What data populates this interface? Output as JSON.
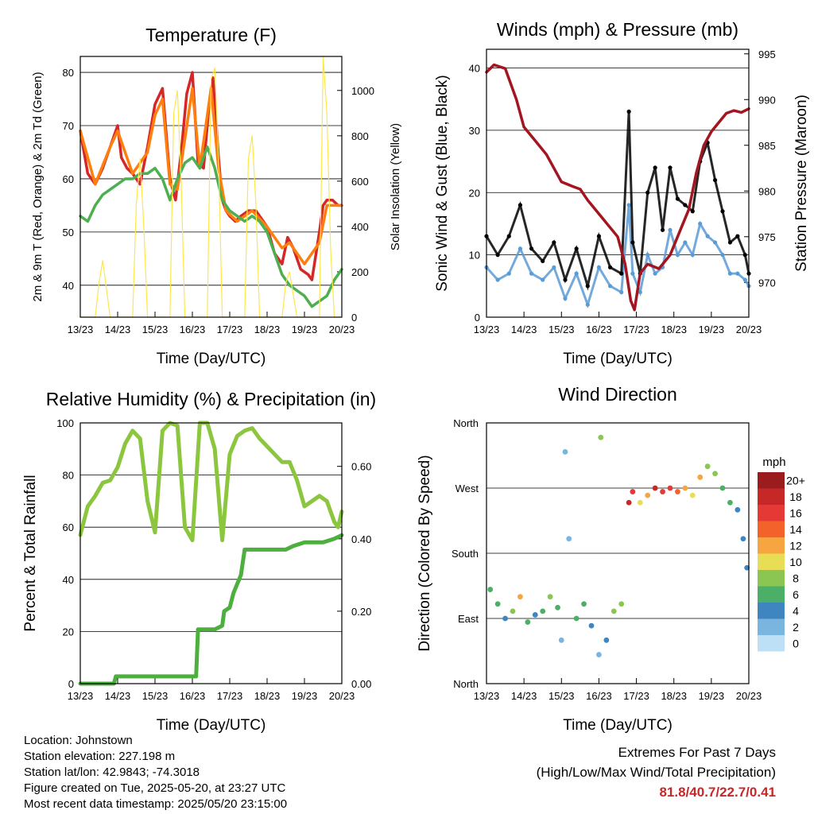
{
  "chart_data": [
    {
      "type": "line",
      "title": "Temperature (F)",
      "xlabel": "Time (Day/UTC)",
      "ylabel": "2m & 9m T (Red, Orange) & 2m Td (Green)",
      "y2label": "Solar Insolation (Yellow)",
      "x_ticks": [
        "13/23",
        "14/23",
        "15/23",
        "16/23",
        "17/23",
        "18/23",
        "19/23",
        "20/23"
      ],
      "ylim": [
        34,
        83
      ],
      "y_ticks": [
        40,
        50,
        60,
        70,
        80
      ],
      "y2lim": [
        0,
        1150
      ],
      "y2_ticks": [
        0,
        200,
        400,
        600,
        800,
        1000
      ],
      "grid": "horizontal",
      "series": [
        {
          "color": "#d62728",
          "x": [
            0,
            0.2,
            0.4,
            0.6,
            0.8,
            1.0,
            1.1,
            1.25,
            1.4,
            1.6,
            1.8,
            2.0,
            2.2,
            2.4,
            2.55,
            2.7,
            2.85,
            3.0,
            3.15,
            3.3,
            3.45,
            3.55,
            3.7,
            3.8,
            3.9,
            4.0,
            4.15,
            4.3,
            4.5,
            4.7,
            5.0,
            5.2,
            5.4,
            5.55,
            5.7,
            5.9,
            6.1,
            6.2,
            6.4,
            6.5,
            6.6,
            6.75,
            6.9,
            7.0
          ],
          "y": [
            69,
            61,
            59,
            62,
            66,
            70,
            64,
            62,
            61,
            59,
            66,
            74,
            77,
            60,
            56,
            65,
            76,
            80,
            63,
            62,
            74,
            79,
            64,
            56,
            54,
            53,
            52,
            53,
            54,
            54,
            51,
            46,
            44,
            49,
            47,
            43,
            42,
            41,
            50,
            55,
            56,
            56,
            55,
            55
          ]
        },
        {
          "color": "#ff7f0e",
          "x": [
            0,
            0.4,
            0.8,
            1.0,
            1.4,
            1.8,
            2.0,
            2.2,
            2.4,
            2.6,
            3.0,
            3.2,
            3.5,
            3.7,
            3.9,
            4.2,
            4.6,
            5.0,
            5.4,
            5.6,
            6.0,
            6.4,
            6.6,
            7.0
          ],
          "y": [
            69,
            59,
            66,
            69,
            61,
            65,
            72,
            75,
            59,
            58,
            77,
            62,
            77,
            62,
            54,
            52,
            54,
            51,
            47,
            48,
            44,
            48,
            55,
            55
          ]
        },
        {
          "color": "#4caf50",
          "x": [
            0,
            0.2,
            0.4,
            0.6,
            0.8,
            1.0,
            1.2,
            1.4,
            1.6,
            1.8,
            2.0,
            2.2,
            2.4,
            2.6,
            2.8,
            3.0,
            3.2,
            3.4,
            3.6,
            3.8,
            4.0,
            4.2,
            4.4,
            4.6,
            4.8,
            5.0,
            5.2,
            5.4,
            5.6,
            5.8,
            6.0,
            6.2,
            6.4,
            6.6,
            6.8,
            7.0
          ],
          "y": [
            53,
            52,
            55,
            57,
            58,
            59,
            60,
            60,
            61,
            61,
            62,
            60,
            56,
            60,
            63,
            64,
            62,
            66,
            62,
            56,
            54,
            53,
            52,
            53,
            52,
            50,
            46,
            42,
            40,
            39,
            38,
            36,
            37,
            38,
            41,
            43
          ]
        },
        {
          "color": "#fde74c",
          "axis": "y2",
          "x": [
            0,
            0.4,
            0.5,
            0.6,
            0.8,
            1.4,
            1.5,
            1.6,
            1.7,
            1.8,
            2.4,
            2.5,
            2.6,
            2.7,
            2.8,
            3.4,
            3.5,
            3.6,
            3.7,
            3.8,
            4.4,
            4.5,
            4.6,
            4.7,
            4.8,
            5.4,
            5.5,
            5.6,
            5.7,
            5.8,
            6.4,
            6.5,
            6.6,
            6.7,
            6.8,
            7.0
          ],
          "y": [
            0,
            0,
            150,
            250,
            0,
            0,
            500,
            700,
            400,
            0,
            0,
            900,
            1000,
            600,
            0,
            0,
            1050,
            1100,
            700,
            0,
            0,
            700,
            800,
            500,
            0,
            0,
            150,
            200,
            100,
            0,
            0,
            1150,
            900,
            300,
            0,
            0
          ]
        }
      ]
    },
    {
      "type": "scatter",
      "title": "Winds (mph) & Pressure (mb)",
      "xlabel": "Time (Day/UTC)",
      "ylabel": "Sonic Wind & Gust (Blue, Black)",
      "y2label": "Station Pressure (Maroon)",
      "x_ticks": [
        "13/23",
        "14/23",
        "15/23",
        "16/23",
        "17/23",
        "18/23",
        "19/23",
        "20/23"
      ],
      "ylim": [
        0,
        43
      ],
      "y_ticks": [
        0,
        10,
        20,
        30,
        40
      ],
      "y2lim": [
        966.2,
        995.5
      ],
      "y2_ticks": [
        970,
        975,
        980,
        985,
        990,
        995
      ],
      "grid": "horizontal",
      "series": [
        {
          "color": "#5b9bd5",
          "x": [
            0,
            0.3,
            0.6,
            0.9,
            1.2,
            1.5,
            1.8,
            2.1,
            2.4,
            2.7,
            3.0,
            3.3,
            3.6,
            3.8,
            3.9,
            4.1,
            4.3,
            4.5,
            4.7,
            4.9,
            5.1,
            5.3,
            5.5,
            5.7,
            5.9,
            6.1,
            6.3,
            6.5,
            6.7,
            6.9,
            7.0
          ],
          "y": [
            8,
            6,
            7,
            11,
            7,
            6,
            8,
            3,
            7,
            2,
            8,
            5,
            4,
            18,
            7,
            4,
            10,
            7,
            8,
            14,
            10,
            12,
            10,
            15,
            13,
            12,
            10,
            7,
            7,
            6,
            5
          ]
        },
        {
          "color": "#000000",
          "x": [
            0,
            0.3,
            0.6,
            0.9,
            1.2,
            1.5,
            1.8,
            2.1,
            2.4,
            2.7,
            3.0,
            3.3,
            3.6,
            3.8,
            3.9,
            4.1,
            4.3,
            4.5,
            4.7,
            4.9,
            5.1,
            5.3,
            5.5,
            5.7,
            5.9,
            6.1,
            6.3,
            6.5,
            6.7,
            6.9,
            7.0
          ],
          "y": [
            13,
            10,
            13,
            18,
            11,
            9,
            12,
            6,
            11,
            5,
            13,
            8,
            7,
            33,
            12,
            7,
            20,
            24,
            14,
            24,
            19,
            18,
            17,
            25,
            28,
            22,
            17,
            12,
            13,
            10,
            7
          ]
        },
        {
          "color": "#a31621",
          "axis": "y2",
          "x": [
            0,
            0.2,
            0.5,
            0.8,
            1.0,
            1.3,
            1.6,
            2.0,
            2.3,
            2.5,
            2.7,
            3.0,
            3.3,
            3.5,
            3.7,
            3.85,
            3.95,
            4.1,
            4.3,
            4.6,
            4.9,
            5.2,
            5.4,
            5.6,
            5.8,
            6.0,
            6.2,
            6.4,
            6.6,
            6.8,
            7.0
          ],
          "y": [
            993,
            993.8,
            993.4,
            990,
            987,
            985.5,
            984,
            981,
            980.5,
            980.2,
            979,
            977.5,
            976,
            975,
            972,
            968,
            967,
            971,
            972,
            971.5,
            973,
            976,
            978,
            982,
            985,
            986.5,
            987.5,
            988.5,
            988.8,
            988.6,
            989
          ]
        }
      ]
    },
    {
      "type": "line",
      "title": "Relative Humidity (%) & Precipitation (in)",
      "xlabel": "Time (Day/UTC)",
      "ylabel": "Percent & Total Rainfall",
      "x_ticks": [
        "13/23",
        "14/23",
        "15/23",
        "16/23",
        "17/23",
        "18/23",
        "19/23",
        "20/23"
      ],
      "ylim": [
        0,
        100
      ],
      "y_ticks": [
        0,
        20,
        40,
        60,
        80,
        100
      ],
      "y2lim": [
        0,
        0.72
      ],
      "y2_ticks": [
        0.0,
        0.2,
        0.4,
        0.6
      ],
      "grid": "horizontal",
      "series": [
        {
          "color": "#8cc63f",
          "x": [
            0,
            0.2,
            0.4,
            0.6,
            0.8,
            1.0,
            1.2,
            1.4,
            1.6,
            1.8,
            2.0,
            2.2,
            2.4,
            2.6,
            2.8,
            3.0,
            3.2,
            3.4,
            3.6,
            3.8,
            4.0,
            4.2,
            4.4,
            4.6,
            4.8,
            5.0,
            5.2,
            5.4,
            5.6,
            5.8,
            6.0,
            6.2,
            6.4,
            6.6,
            6.8,
            6.9,
            7.0
          ],
          "y": [
            57,
            68,
            72,
            77,
            78,
            83,
            92,
            97,
            94,
            70,
            58,
            97,
            100,
            99,
            60,
            55,
            100,
            100,
            90,
            55,
            88,
            95,
            97,
            98,
            94,
            91,
            88,
            85,
            85,
            78,
            68,
            70,
            72,
            70,
            62,
            60,
            66
          ]
        },
        {
          "color": "#4caf3e",
          "axis": "y2",
          "x": [
            0,
            0.9,
            0.95,
            2.5,
            3.1,
            3.15,
            3.6,
            3.8,
            3.85,
            4.0,
            4.1,
            4.3,
            4.4,
            4.6,
            4.8,
            5.0,
            5.5,
            5.7,
            6.0,
            6.5,
            6.8,
            7.0
          ],
          "y": [
            0,
            0,
            0.02,
            0.02,
            0.02,
            0.15,
            0.15,
            0.16,
            0.2,
            0.21,
            0.25,
            0.3,
            0.37,
            0.37,
            0.37,
            0.37,
            0.37,
            0.38,
            0.39,
            0.39,
            0.4,
            0.41
          ]
        }
      ]
    },
    {
      "type": "scatter",
      "title": "Wind Direction",
      "xlabel": "Time (Day/UTC)",
      "ylabel": "Direction (Colored By Speed)",
      "x_ticks": [
        "13/23",
        "14/23",
        "15/23",
        "16/23",
        "17/23",
        "18/23",
        "19/23",
        "20/23"
      ],
      "y_ticks": [
        "North",
        "East",
        "South",
        "West",
        "North"
      ],
      "ylim": [
        0,
        360
      ],
      "grid": "horizontal",
      "legend": {
        "title": "mph",
        "labels": [
          "20+",
          "18",
          "16",
          "14",
          "12",
          "10",
          "8",
          "6",
          "4",
          "2",
          "0"
        ],
        "colors": [
          "#9b1c1c",
          "#c62828",
          "#e53935",
          "#f4622c",
          "#f7a541",
          "#e8de55",
          "#8bc653",
          "#4caf68",
          "#3f86c1",
          "#7ab5e0",
          "#bde0f7"
        ]
      },
      "points": [
        {
          "x": 0.1,
          "y": 130,
          "s": 6
        },
        {
          "x": 0.3,
          "y": 110,
          "s": 6
        },
        {
          "x": 0.5,
          "y": 90,
          "s": 4
        },
        {
          "x": 0.7,
          "y": 100,
          "s": 8
        },
        {
          "x": 0.9,
          "y": 120,
          "s": 11
        },
        {
          "x": 1.1,
          "y": 85,
          "s": 5
        },
        {
          "x": 1.3,
          "y": 95,
          "s": 4
        },
        {
          "x": 1.5,
          "y": 100,
          "s": 5
        },
        {
          "x": 1.7,
          "y": 120,
          "s": 7
        },
        {
          "x": 1.9,
          "y": 105,
          "s": 6
        },
        {
          "x": 2.0,
          "y": 60,
          "s": 2
        },
        {
          "x": 2.1,
          "y": 320,
          "s": 1
        },
        {
          "x": 2.2,
          "y": 200,
          "s": 2
        },
        {
          "x": 2.4,
          "y": 90,
          "s": 5
        },
        {
          "x": 2.6,
          "y": 110,
          "s": 6
        },
        {
          "x": 2.8,
          "y": 80,
          "s": 4
        },
        {
          "x": 3.0,
          "y": 40,
          "s": 2
        },
        {
          "x": 3.05,
          "y": 340,
          "s": 8
        },
        {
          "x": 3.2,
          "y": 60,
          "s": 3
        },
        {
          "x": 3.4,
          "y": 100,
          "s": 7
        },
        {
          "x": 3.6,
          "y": 110,
          "s": 8
        },
        {
          "x": 3.8,
          "y": 250,
          "s": 18
        },
        {
          "x": 3.9,
          "y": 265,
          "s": 15
        },
        {
          "x": 4.1,
          "y": 250,
          "s": 9
        },
        {
          "x": 4.3,
          "y": 260,
          "s": 12
        },
        {
          "x": 4.5,
          "y": 270,
          "s": 17
        },
        {
          "x": 4.7,
          "y": 265,
          "s": 16
        },
        {
          "x": 4.9,
          "y": 270,
          "s": 15
        },
        {
          "x": 5.1,
          "y": 265,
          "s": 13
        },
        {
          "x": 5.3,
          "y": 270,
          "s": 12
        },
        {
          "x": 5.5,
          "y": 260,
          "s": 10
        },
        {
          "x": 5.7,
          "y": 285,
          "s": 11
        },
        {
          "x": 5.9,
          "y": 300,
          "s": 8
        },
        {
          "x": 6.1,
          "y": 290,
          "s": 7
        },
        {
          "x": 6.3,
          "y": 270,
          "s": 6
        },
        {
          "x": 6.5,
          "y": 250,
          "s": 5
        },
        {
          "x": 6.7,
          "y": 240,
          "s": 4
        },
        {
          "x": 6.85,
          "y": 200,
          "s": 3
        },
        {
          "x": 6.95,
          "y": 160,
          "s": 3
        }
      ]
    }
  ],
  "info": {
    "location": "Location: Johnstown",
    "elevation": "Station elevation: 227.198 m",
    "latlon": "Station lat/lon: 42.9843; -74.3018",
    "created": "Figure created on Tue, 2025-05-20, at 23:27 UTC",
    "recent": "Most recent data timestamp: 2025/05/20 23:15:00"
  },
  "extremes": {
    "title": "Extremes For Past 7 Days",
    "subtitle": "(High/Low/Max Wind/Total Precipitation)",
    "values": "81.8/40.7/22.7/0.41"
  }
}
